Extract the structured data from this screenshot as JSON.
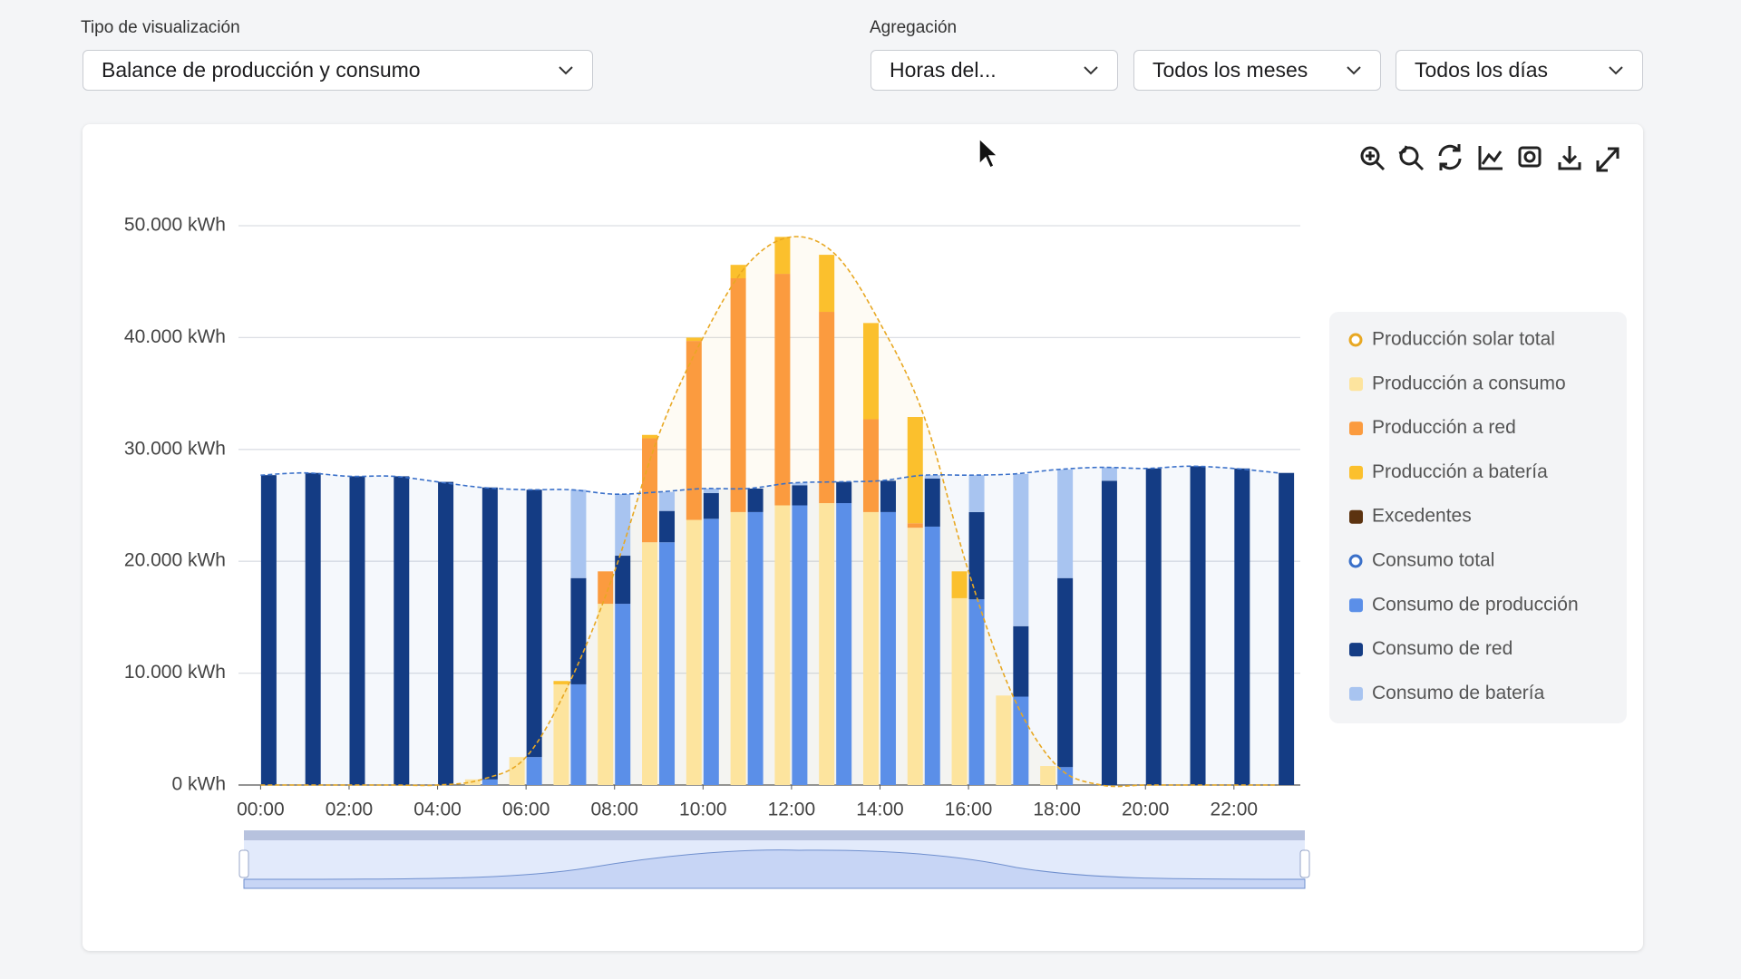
{
  "controls": {
    "view_label": "Tipo de visualización",
    "view_value": "Balance de producción y consumo",
    "aggregation_label": "Agregación",
    "aggregation_value": "Horas del...",
    "months_value": "Todos los meses",
    "days_value": "Todos los días"
  },
  "chart_data": {
    "type": "bar",
    "categories": [
      "00:00",
      null,
      "02:00",
      null,
      "04:00",
      null,
      "06:00",
      null,
      "08:00",
      null,
      "10:00",
      null,
      "12:00",
      null,
      "14:00",
      null,
      "16:00",
      null,
      "18:00",
      null,
      "20:00",
      null,
      "22:00",
      null
    ],
    "ylim": [
      0,
      50000
    ],
    "yticks": [
      {
        "value": 0,
        "label": "0 kWh"
      },
      {
        "value": 10000,
        "label": "10.000 kWh"
      },
      {
        "value": 20000,
        "label": "20.000 kWh"
      },
      {
        "value": 30000,
        "label": "30.000 kWh"
      },
      {
        "value": 40000,
        "label": "40.000 kWh"
      },
      {
        "value": 50000,
        "label": "50.000 kWh"
      }
    ],
    "grid": true,
    "legend": "right",
    "series": [
      {
        "name": "Producción solar total",
        "type": "line",
        "color": "#e8a823",
        "values": [
          0,
          0,
          0,
          0,
          0,
          500,
          2500,
          9300,
          19100,
          31300,
          40000,
          46500,
          49000,
          47400,
          41300,
          32900,
          19100,
          8000,
          1700,
          0,
          0,
          0,
          0,
          0
        ]
      },
      {
        "name": "Producción a consumo",
        "type": "bar",
        "bar_side": "left",
        "color": "#fde49e",
        "values": [
          0,
          0,
          0,
          0,
          0,
          500,
          2500,
          9000,
          16200,
          21700,
          23700,
          24400,
          25000,
          25200,
          24400,
          23000,
          16700,
          8000,
          1700,
          0,
          0,
          0,
          0,
          0
        ]
      },
      {
        "name": "Producción a red",
        "type": "bar",
        "bar_side": "left",
        "color": "#fb9b3f",
        "values": [
          0,
          0,
          0,
          0,
          0,
          0,
          0,
          0,
          2900,
          9300,
          16000,
          20900,
          20700,
          17100,
          8300,
          400,
          0,
          0,
          0,
          0,
          0,
          0,
          0,
          0
        ]
      },
      {
        "name": "Producción a batería",
        "type": "bar",
        "bar_side": "left",
        "color": "#fbc02d",
        "values": [
          0,
          0,
          0,
          0,
          0,
          0,
          0,
          300,
          0,
          300,
          300,
          1200,
          3300,
          5100,
          8600,
          9500,
          2400,
          0,
          0,
          0,
          0,
          0,
          0,
          0
        ]
      },
      {
        "name": "Excedentes",
        "type": "bar",
        "bar_side": "left",
        "color": "#5c3310",
        "values": [
          0,
          0,
          0,
          0,
          0,
          0,
          0,
          0,
          0,
          0,
          0,
          0,
          0,
          0,
          0,
          0,
          0,
          0,
          0,
          0,
          0,
          0,
          0,
          0
        ]
      },
      {
        "name": "Consumo total",
        "type": "line",
        "color": "#3a70c9",
        "values": [
          27700,
          27900,
          27600,
          27600,
          27100,
          26600,
          26400,
          26400,
          26000,
          26200,
          26500,
          26500,
          27000,
          27100,
          27200,
          27700,
          27700,
          27800,
          28200,
          28400,
          28300,
          28500,
          28300,
          27900
        ]
      },
      {
        "name": "Consumo de producción",
        "type": "bar",
        "bar_side": "right",
        "color": "#5b8fe8",
        "values": [
          0,
          0,
          0,
          0,
          0,
          500,
          2500,
          9000,
          16200,
          21700,
          23800,
          24400,
          25000,
          25200,
          24400,
          23100,
          16600,
          7900,
          1600,
          0,
          0,
          0,
          0,
          0
        ]
      },
      {
        "name": "Consumo de red",
        "type": "bar",
        "bar_side": "right",
        "color": "#143c84",
        "values": [
          27700,
          27900,
          27600,
          27600,
          27100,
          26100,
          23900,
          9500,
          4300,
          2800,
          2300,
          2100,
          1800,
          1900,
          2800,
          4300,
          7800,
          6300,
          16900,
          27200,
          28300,
          28500,
          28300,
          27900
        ]
      },
      {
        "name": "Consumo de batería",
        "type": "bar",
        "bar_side": "right",
        "color": "#a8c4f0",
        "values": [
          0,
          0,
          0,
          0,
          0,
          0,
          0,
          7900,
          5500,
          1700,
          400,
          0,
          200,
          0,
          0,
          300,
          3300,
          13600,
          9700,
          1200,
          0,
          0,
          0,
          0
        ]
      }
    ]
  }
}
